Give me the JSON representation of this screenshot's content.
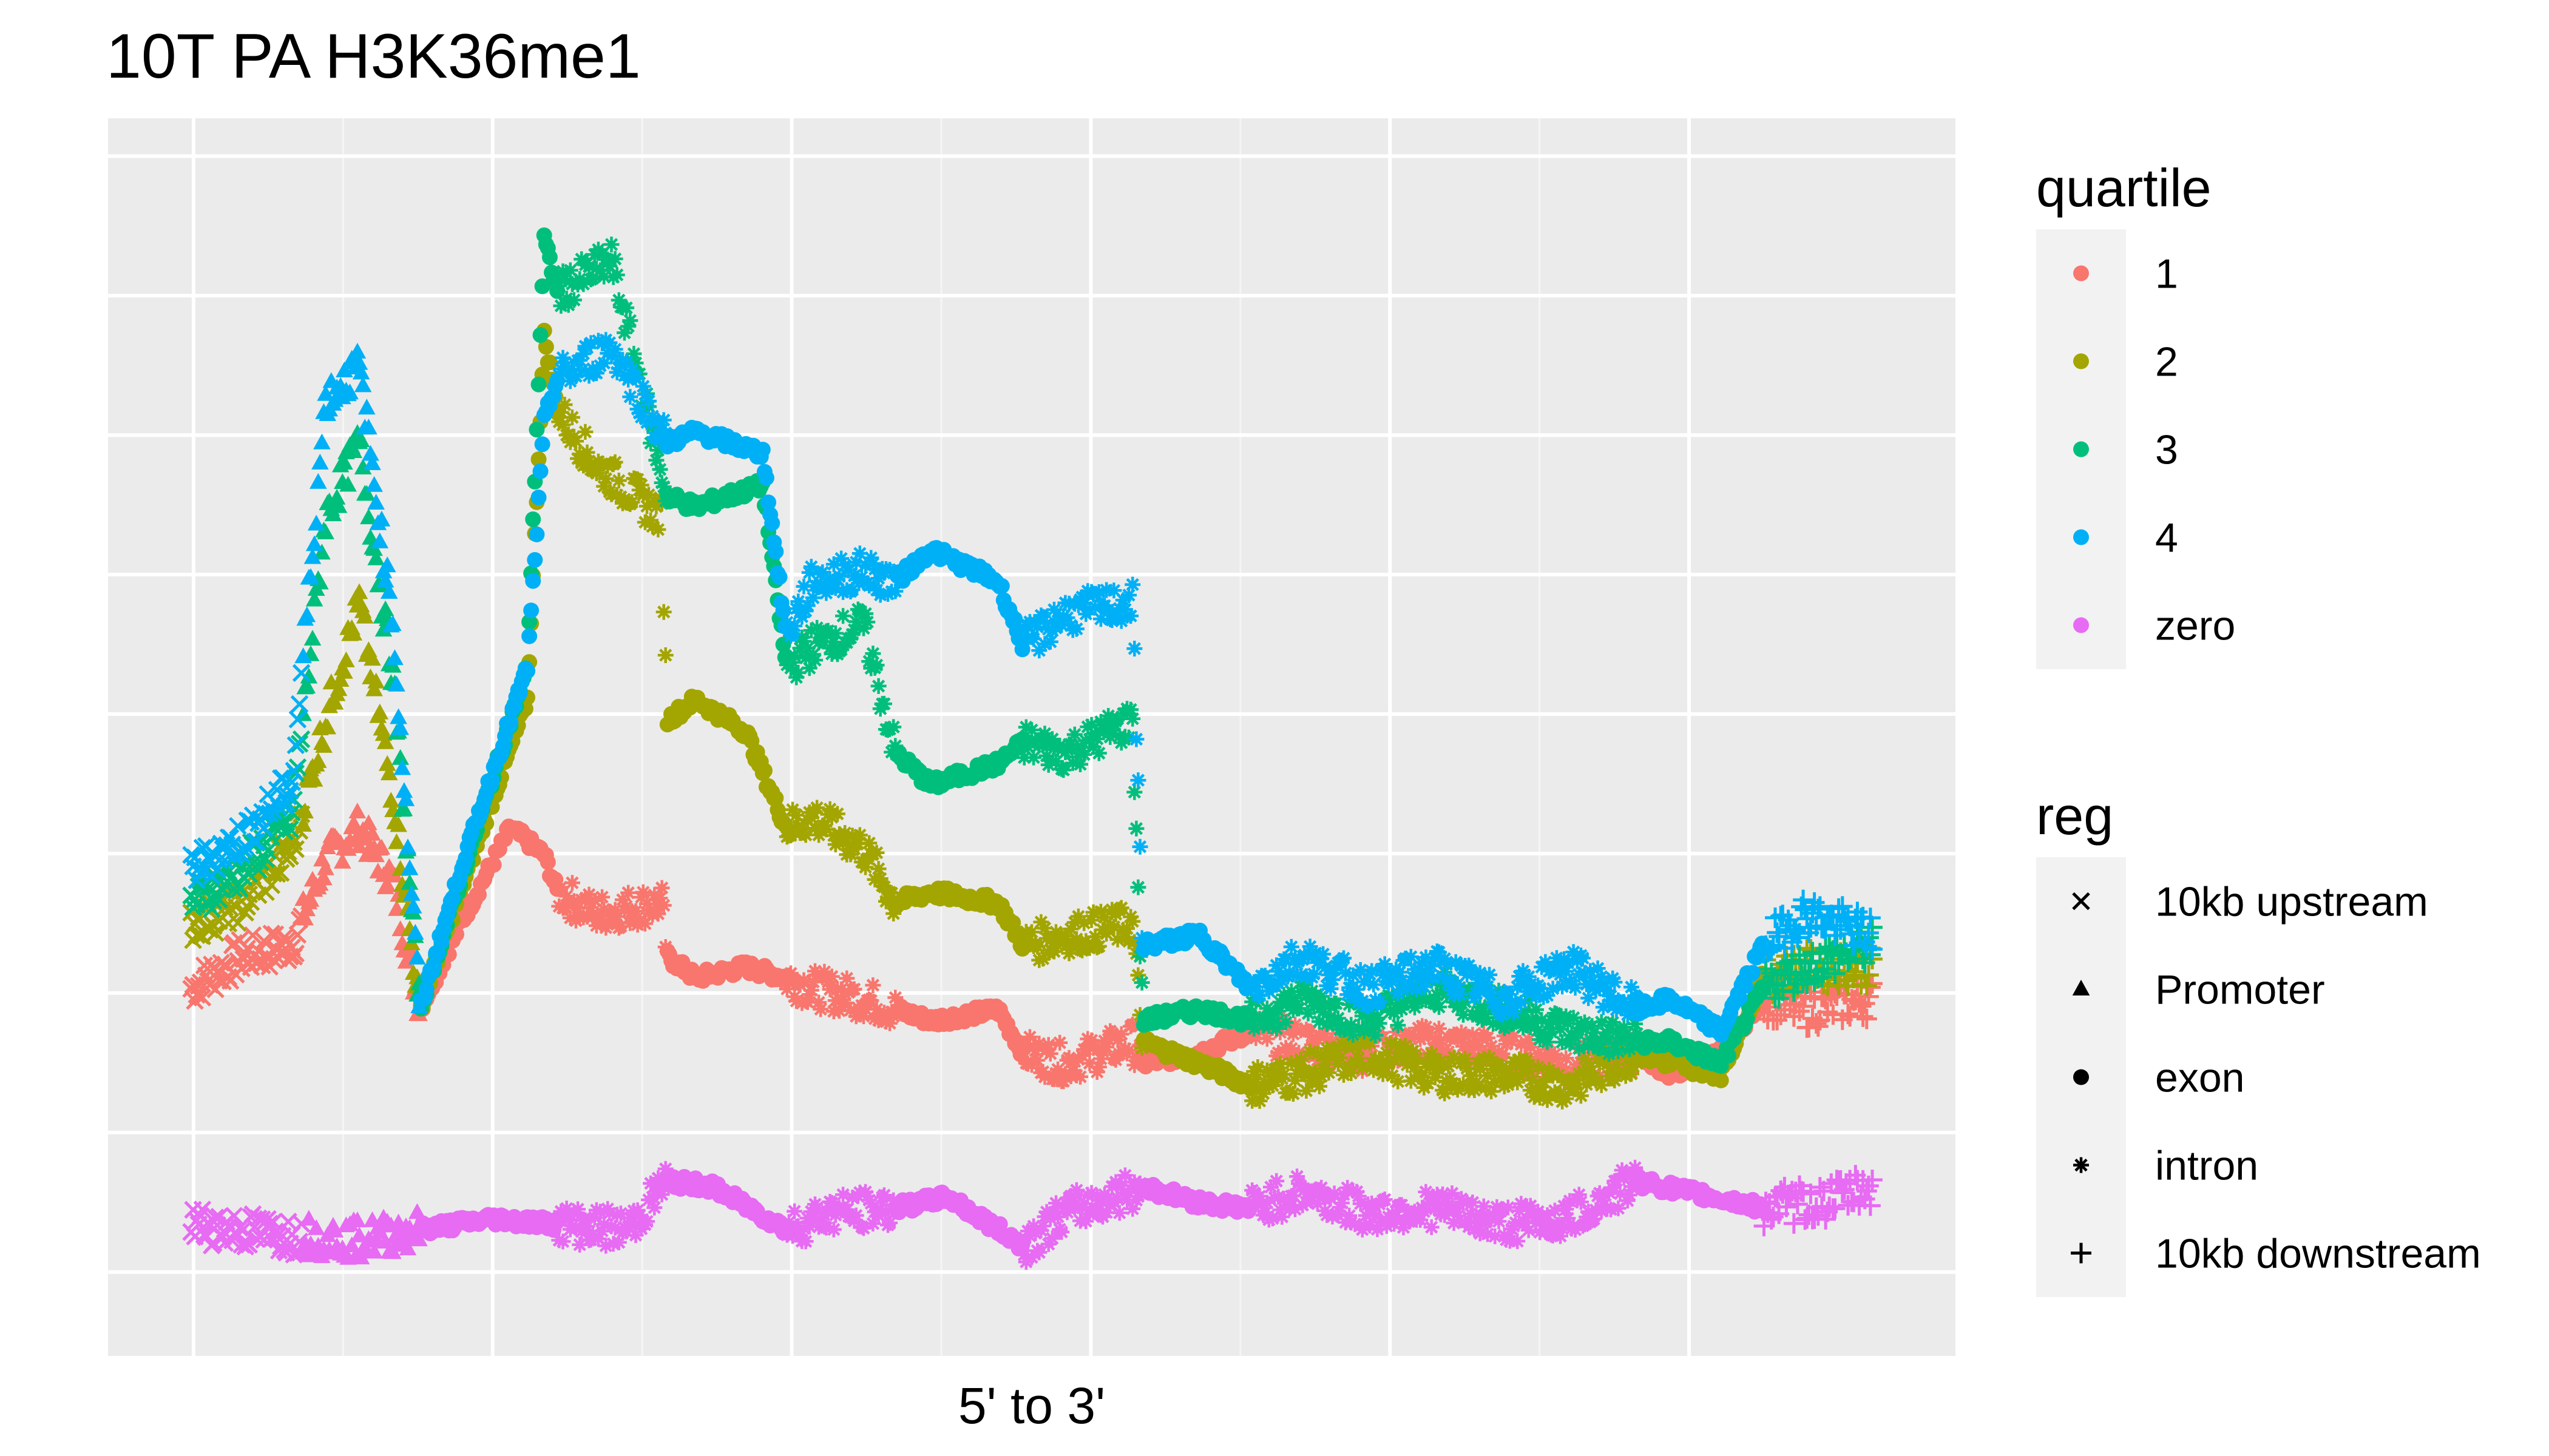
{
  "chart_data": {
    "type": "scatter",
    "title": "10T PA H3K36me1",
    "xlabel": "5' to 3'",
    "ylabel": "",
    "xlim": [
      0,
      1
    ],
    "ylim": [
      0,
      1
    ],
    "grid": true,
    "x_tick_labels": [],
    "y_tick_labels": [],
    "legend_position": "right",
    "legends": [
      {
        "title": "quartile",
        "entries": [
          {
            "label": "1",
            "color": "#F8766D"
          },
          {
            "label": "2",
            "color": "#A3A500"
          },
          {
            "label": "3",
            "color": "#00BF7D"
          },
          {
            "label": "4",
            "color": "#00B0F6"
          },
          {
            "label": "zero",
            "color": "#E76BF3"
          }
        ]
      },
      {
        "title": "reg",
        "entries": [
          {
            "label": "10kb upstream",
            "shape": "cross"
          },
          {
            "label": "Promoter",
            "shape": "triangle"
          },
          {
            "label": "exon",
            "shape": "circle"
          },
          {
            "label": "intron",
            "shape": "asterisk"
          },
          {
            "label": "10kb downstream",
            "shape": "plus"
          }
        ]
      }
    ],
    "segments": [
      {
        "region": "10kb upstream",
        "shape": "cross",
        "x": [
          0.0,
          0.066
        ]
      },
      {
        "region": "Promoter",
        "shape": "triangle",
        "x": [
          0.066,
          0.136
        ]
      },
      {
        "region": "exon",
        "shape": "circle",
        "x": [
          0.136,
          0.218
        ]
      },
      {
        "region": "intron",
        "shape": "asterisk",
        "x": [
          0.218,
          0.283
        ]
      },
      {
        "region": "exon",
        "shape": "circle",
        "x": [
          0.283,
          0.354
        ]
      },
      {
        "region": "intron",
        "shape": "asterisk",
        "x": [
          0.354,
          0.419
        ]
      },
      {
        "region": "exon",
        "shape": "circle",
        "x": [
          0.419,
          0.495
        ]
      },
      {
        "region": "intron",
        "shape": "asterisk",
        "x": [
          0.495,
          0.566
        ]
      },
      {
        "region": "exon",
        "shape": "circle",
        "x": [
          0.566,
          0.63
        ]
      },
      {
        "region": "intron",
        "shape": "asterisk",
        "x": [
          0.63,
          0.86
        ]
      },
      {
        "region": "exon",
        "shape": "circle",
        "x": [
          0.86,
          0.935
        ]
      },
      {
        "region": "10kb downstream",
        "shape": "plus",
        "x": [
          0.935,
          1.0
        ]
      }
    ],
    "series": [
      {
        "name": "1",
        "color": "#F8766D",
        "x": [
          0.0,
          0.03,
          0.06,
          0.08,
          0.1,
          0.12,
          0.136,
          0.16,
          0.19,
          0.21,
          0.218,
          0.24,
          0.28,
          0.283,
          0.3,
          0.33,
          0.354,
          0.37,
          0.4,
          0.419,
          0.44,
          0.48,
          0.495,
          0.52,
          0.56,
          0.566,
          0.6,
          0.63,
          0.66,
          0.7,
          0.74,
          0.78,
          0.82,
          0.86,
          0.88,
          0.91,
          0.935,
          0.96,
          1.0
        ],
        "y": [
          0.26,
          0.29,
          0.3,
          0.38,
          0.41,
          0.36,
          0.24,
          0.32,
          0.41,
          0.385,
          0.35,
          0.33,
          0.34,
          0.29,
          0.27,
          0.28,
          0.27,
          0.26,
          0.25,
          0.24,
          0.23,
          0.24,
          0.2,
          0.19,
          0.21,
          0.19,
          0.2,
          0.22,
          0.21,
          0.2,
          0.21,
          0.2,
          0.19,
          0.2,
          0.18,
          0.2,
          0.25,
          0.24,
          0.25
        ]
      },
      {
        "name": "2",
        "color": "#A3A500",
        "x": [
          0.0,
          0.03,
          0.06,
          0.08,
          0.1,
          0.12,
          0.136,
          0.16,
          0.2,
          0.21,
          0.218,
          0.24,
          0.28,
          0.283,
          0.3,
          0.33,
          0.354,
          0.37,
          0.4,
          0.419,
          0.44,
          0.48,
          0.495,
          0.52,
          0.56,
          0.566,
          0.6,
          0.63,
          0.66,
          0.7,
          0.74,
          0.78,
          0.82,
          0.86,
          0.88,
          0.91,
          0.935,
          0.96,
          1.0
        ],
        "y": [
          0.32,
          0.34,
          0.39,
          0.51,
          0.62,
          0.44,
          0.24,
          0.35,
          0.53,
          0.87,
          0.8,
          0.75,
          0.7,
          0.51,
          0.53,
          0.5,
          0.41,
          0.42,
          0.39,
          0.34,
          0.35,
          0.34,
          0.3,
          0.31,
          0.32,
          0.21,
          0.19,
          0.17,
          0.18,
          0.2,
          0.18,
          0.18,
          0.17,
          0.2,
          0.19,
          0.18,
          0.27,
          0.28,
          0.28
        ]
      },
      {
        "name": "3",
        "color": "#00BF7D",
        "x": [
          0.0,
          0.03,
          0.06,
          0.08,
          0.1,
          0.12,
          0.136,
          0.16,
          0.2,
          0.21,
          0.218,
          0.25,
          0.283,
          0.3,
          0.34,
          0.354,
          0.37,
          0.4,
          0.419,
          0.44,
          0.48,
          0.495,
          0.52,
          0.56,
          0.566,
          0.6,
          0.63,
          0.66,
          0.7,
          0.74,
          0.78,
          0.82,
          0.86,
          0.88,
          0.91,
          0.935,
          0.96,
          1.0
        ],
        "y": [
          0.34,
          0.37,
          0.42,
          0.7,
          0.77,
          0.55,
          0.24,
          0.36,
          0.56,
          0.96,
          0.91,
          0.94,
          0.72,
          0.71,
          0.73,
          0.56,
          0.58,
          0.6,
          0.48,
          0.45,
          0.47,
          0.49,
          0.48,
          0.51,
          0.23,
          0.24,
          0.23,
          0.25,
          0.23,
          0.26,
          0.24,
          0.22,
          0.21,
          0.21,
          0.19,
          0.26,
          0.28,
          0.3
        ]
      },
      {
        "name": "4",
        "color": "#00B0F6",
        "x": [
          0.0,
          0.03,
          0.06,
          0.08,
          0.1,
          0.12,
          0.136,
          0.16,
          0.2,
          0.21,
          0.218,
          0.25,
          0.283,
          0.3,
          0.34,
          0.354,
          0.37,
          0.4,
          0.419,
          0.44,
          0.48,
          0.495,
          0.52,
          0.56,
          0.566,
          0.6,
          0.63,
          0.66,
          0.7,
          0.74,
          0.78,
          0.82,
          0.86,
          0.88,
          0.91,
          0.935,
          0.96,
          1.0
        ],
        "y": [
          0.37,
          0.4,
          0.45,
          0.81,
          0.84,
          0.6,
          0.24,
          0.37,
          0.56,
          0.79,
          0.83,
          0.86,
          0.77,
          0.78,
          0.76,
          0.59,
          0.64,
          0.65,
          0.64,
          0.67,
          0.64,
          0.58,
          0.61,
          0.62,
          0.3,
          0.31,
          0.26,
          0.29,
          0.26,
          0.28,
          0.25,
          0.28,
          0.24,
          0.25,
          0.22,
          0.3,
          0.33,
          0.31
        ]
      },
      {
        "name": "zero",
        "color": "#E76BF3",
        "x": [
          0.0,
          0.05,
          0.1,
          0.136,
          0.18,
          0.218,
          0.26,
          0.283,
          0.31,
          0.354,
          0.38,
          0.419,
          0.45,
          0.495,
          0.52,
          0.566,
          0.6,
          0.63,
          0.66,
          0.7,
          0.74,
          0.78,
          0.82,
          0.86,
          0.89,
          0.935,
          0.97,
          1.0
        ],
        "y": [
          0.04,
          0.03,
          0.025,
          0.035,
          0.045,
          0.04,
          0.035,
          0.08,
          0.075,
          0.035,
          0.05,
          0.055,
          0.065,
          0.02,
          0.05,
          0.075,
          0.06,
          0.055,
          0.07,
          0.05,
          0.055,
          0.04,
          0.045,
          0.08,
          0.07,
          0.055,
          0.06,
          0.075
        ]
      }
    ]
  }
}
